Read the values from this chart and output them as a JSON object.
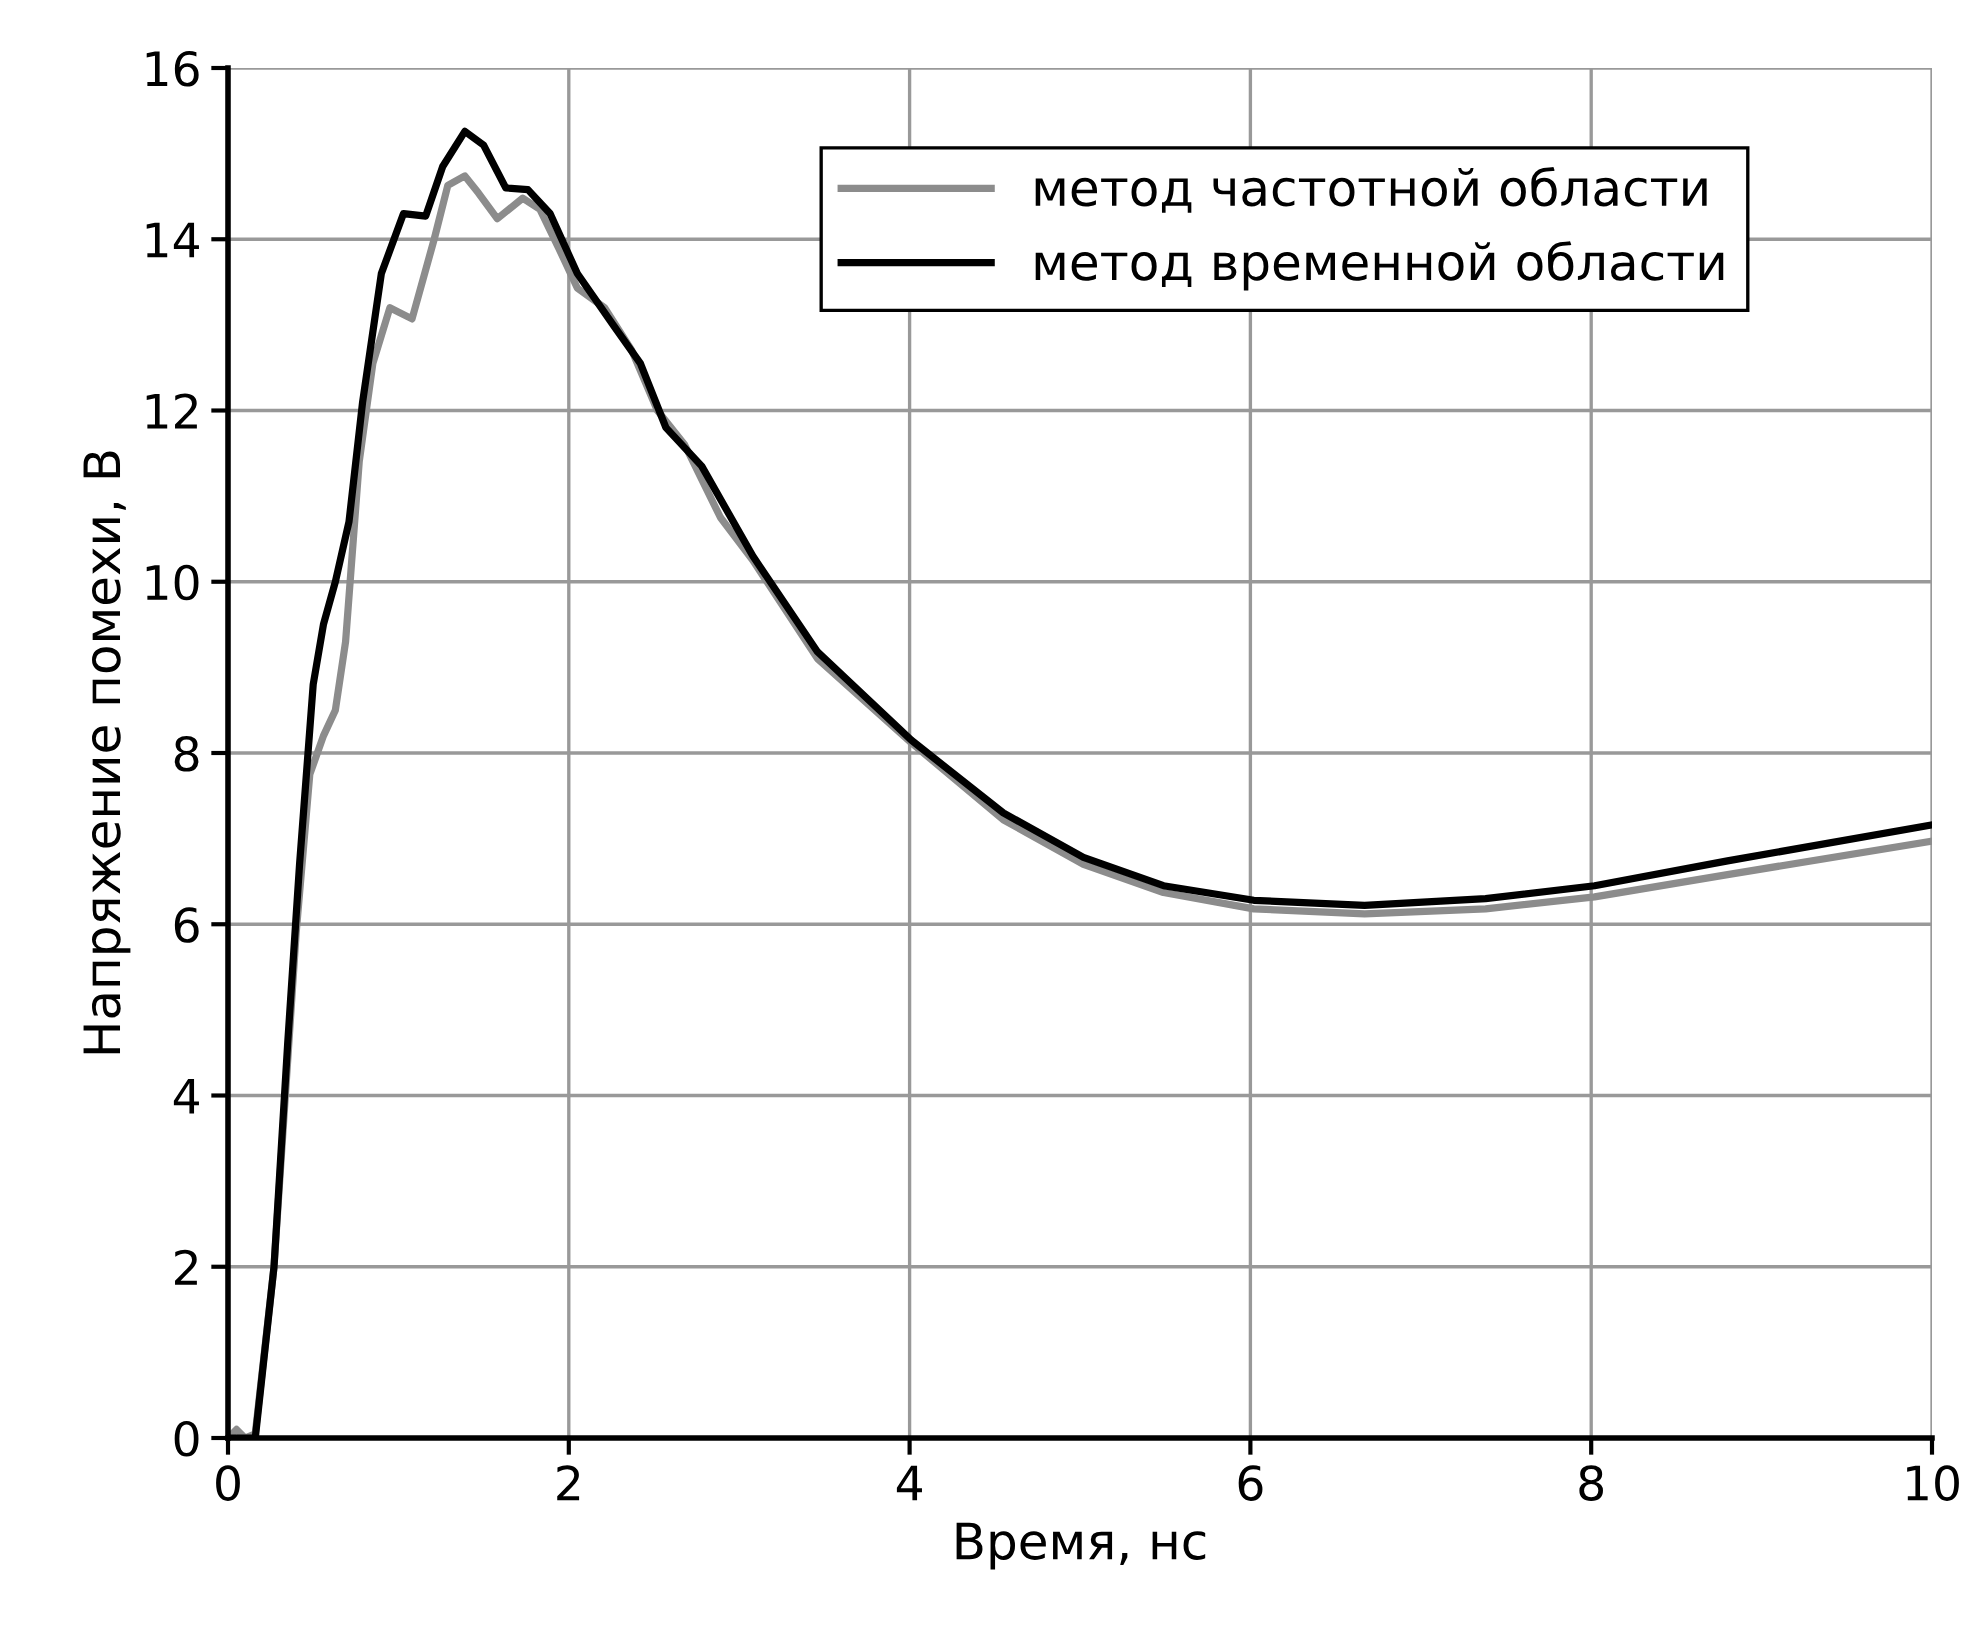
{
  "chart_data": {
    "type": "line",
    "xlabel": "Время, нс",
    "ylabel": "Напряжение помехи, В",
    "xlim": [
      0,
      10
    ],
    "ylim": [
      0,
      16
    ],
    "xticks": [
      0,
      2,
      4,
      6,
      8,
      10
    ],
    "yticks": [
      0,
      2,
      4,
      6,
      8,
      10,
      12,
      14,
      16
    ],
    "grid": true,
    "legend": "top",
    "line_style": "solid",
    "series": [
      {
        "name": "метод частотной области",
        "color": "#8c8c8c",
        "x": [
          0,
          0.05,
          0.1,
          0.16,
          0.27,
          0.4,
          0.48,
          0.56,
          0.63,
          0.69,
          0.77,
          0.85,
          0.95,
          1.08,
          1.21,
          1.29,
          1.39,
          1.47,
          1.58,
          1.73,
          1.83,
          1.94,
          2.05,
          2.21,
          2.37,
          2.52,
          2.68,
          2.89,
          3.08,
          3.46,
          4.01,
          4.55,
          5.02,
          5.49,
          6.02,
          6.67,
          7.38,
          8.02,
          8.8,
          10
        ],
        "values": [
          0,
          0.1,
          0,
          0.05,
          2.0,
          5.9,
          7.75,
          8.2,
          8.5,
          9.3,
          11.4,
          12.55,
          13.2,
          13.07,
          14.0,
          14.63,
          14.74,
          14.54,
          14.24,
          14.48,
          14.35,
          13.9,
          13.43,
          13.2,
          12.7,
          12.0,
          11.6,
          10.75,
          10.25,
          9.1,
          8.12,
          7.22,
          6.7,
          6.37,
          6.18,
          6.12,
          6.18,
          6.32,
          6.58,
          6.97
        ]
      },
      {
        "name": "метод временной области",
        "color": "#000000",
        "x": [
          0,
          0.16,
          0.27,
          0.35,
          0.42,
          0.5,
          0.56,
          0.63,
          0.71,
          0.79,
          0.9,
          1.03,
          1.16,
          1.26,
          1.39,
          1.5,
          1.63,
          1.76,
          1.89,
          2.05,
          2.26,
          2.42,
          2.57,
          2.78,
          3.08,
          3.46,
          4.01,
          4.55,
          5.02,
          5.49,
          6.02,
          6.67,
          7.38,
          8.02,
          8.8,
          10
        ],
        "values": [
          0,
          0,
          2.0,
          4.6,
          6.7,
          8.8,
          9.5,
          10.0,
          10.7,
          12.1,
          13.6,
          14.3,
          14.27,
          14.85,
          15.26,
          15.1,
          14.6,
          14.58,
          14.3,
          13.6,
          13.0,
          12.55,
          11.8,
          11.35,
          10.3,
          9.18,
          8.15,
          7.3,
          6.78,
          6.45,
          6.28,
          6.22,
          6.3,
          6.45,
          6.74,
          7.16
        ]
      }
    ]
  }
}
